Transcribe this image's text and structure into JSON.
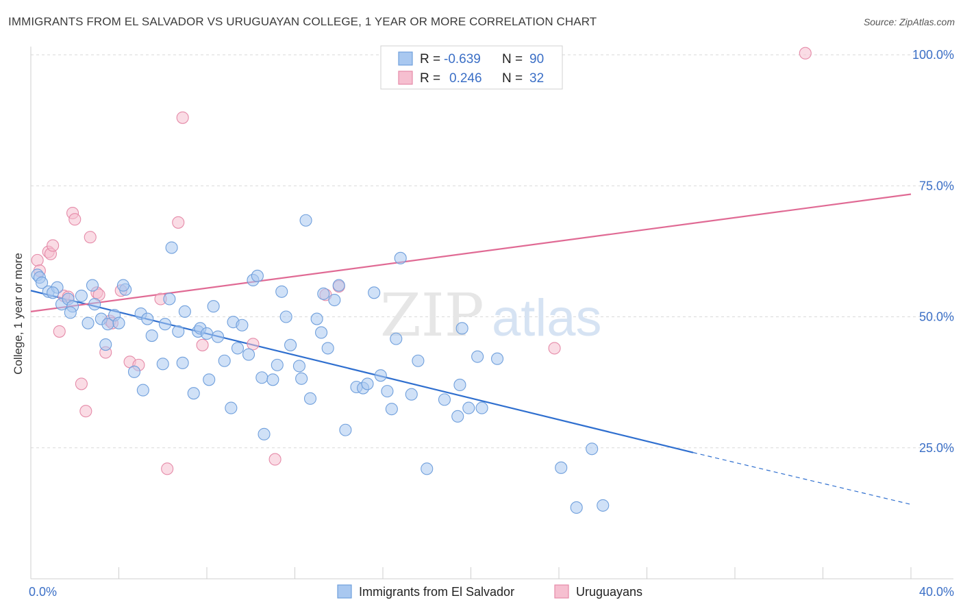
{
  "header": {
    "title": "IMMIGRANTS FROM EL SALVADOR VS URUGUAYAN COLLEGE, 1 YEAR OR MORE CORRELATION CHART",
    "source": "Source: ZipAtlas.com"
  },
  "watermark": {
    "zip": "ZIP",
    "atlas": "atlas"
  },
  "colors": {
    "blue_fill": "#a9c8f0",
    "blue_stroke": "#6f9fdc",
    "blue_line": "#2f6fcf",
    "pink_fill": "#f6bfd0",
    "pink_stroke": "#e58aa8",
    "pink_line": "#e06a94",
    "axis_text": "#3b6fc6",
    "grid": "#d9d9d9"
  },
  "legend": {
    "rows": [
      {
        "r_label": "R =",
        "r_value": "-0.639",
        "n_label": "N =",
        "n_value": "90"
      },
      {
        "r_label": "R =",
        "r_value": "0.246",
        "n_label": "N =",
        "n_value": "32"
      }
    ]
  },
  "chart_data": {
    "type": "scatter",
    "title": "IMMIGRANTS FROM EL SALVADOR VS URUGUAYAN COLLEGE, 1 YEAR OR MORE CORRELATION CHART",
    "xlabel": "",
    "ylabel": "College, 1 year or more",
    "xlim": [
      0,
      40
    ],
    "ylim": [
      0,
      100
    ],
    "x_tick_labels": [
      "0.0%",
      "40.0%"
    ],
    "y_ticks": [
      25,
      50,
      75,
      100
    ],
    "y_tick_labels": [
      "25.0%",
      "50.0%",
      "75.0%",
      "100.0%"
    ],
    "grid": true,
    "legend_position": "top-center",
    "series": [
      {
        "name": "Immigrants from El Salvador",
        "color": "#a9c8f0",
        "trend": {
          "x0": 0,
          "y0": 55.0,
          "x1": 30.1,
          "y1": 24.1,
          "dash_x1": 40,
          "dash_y1": 14.2
        },
        "points": [
          [
            0.3,
            58.0
          ],
          [
            0.4,
            57.5
          ],
          [
            0.5,
            56.5
          ],
          [
            0.8,
            54.8
          ],
          [
            1.2,
            55.6
          ],
          [
            1.0,
            54.6
          ],
          [
            1.4,
            52.4
          ],
          [
            1.7,
            53.4
          ],
          [
            1.9,
            52.0
          ],
          [
            1.8,
            50.8
          ],
          [
            2.3,
            54.0
          ],
          [
            2.6,
            48.8
          ],
          [
            2.8,
            56.0
          ],
          [
            2.9,
            52.4
          ],
          [
            3.2,
            49.6
          ],
          [
            3.4,
            44.7
          ],
          [
            3.5,
            48.6
          ],
          [
            3.8,
            50.3
          ],
          [
            4.0,
            48.8
          ],
          [
            4.3,
            55.2
          ],
          [
            4.2,
            56.0
          ],
          [
            4.7,
            39.5
          ],
          [
            5.0,
            50.6
          ],
          [
            5.1,
            36.0
          ],
          [
            5.3,
            49.6
          ],
          [
            5.5,
            46.4
          ],
          [
            6.0,
            41.0
          ],
          [
            6.1,
            48.6
          ],
          [
            6.3,
            53.4
          ],
          [
            6.4,
            63.2
          ],
          [
            6.7,
            47.2
          ],
          [
            6.9,
            41.2
          ],
          [
            7.0,
            51.0
          ],
          [
            7.4,
            35.4
          ],
          [
            7.6,
            47.2
          ],
          [
            7.7,
            47.8
          ],
          [
            8.0,
            46.8
          ],
          [
            8.1,
            38.0
          ],
          [
            8.3,
            52.0
          ],
          [
            8.5,
            46.2
          ],
          [
            8.8,
            41.6
          ],
          [
            9.1,
            32.6
          ],
          [
            9.2,
            49.0
          ],
          [
            9.4,
            44.0
          ],
          [
            9.6,
            48.4
          ],
          [
            9.9,
            42.8
          ],
          [
            10.1,
            57.0
          ],
          [
            10.3,
            57.8
          ],
          [
            10.5,
            38.4
          ],
          [
            10.6,
            27.6
          ],
          [
            11.0,
            38.0
          ],
          [
            11.2,
            40.8
          ],
          [
            11.4,
            54.8
          ],
          [
            11.6,
            50.0
          ],
          [
            11.8,
            44.6
          ],
          [
            12.2,
            40.6
          ],
          [
            12.3,
            38.2
          ],
          [
            12.5,
            68.4
          ],
          [
            12.7,
            34.4
          ],
          [
            13.0,
            49.6
          ],
          [
            13.2,
            47.0
          ],
          [
            13.3,
            54.4
          ],
          [
            13.5,
            44.0
          ],
          [
            13.8,
            53.2
          ],
          [
            14.0,
            56.0
          ],
          [
            14.3,
            28.4
          ],
          [
            14.8,
            36.6
          ],
          [
            15.1,
            36.4
          ],
          [
            15.3,
            37.2
          ],
          [
            15.6,
            54.6
          ],
          [
            15.9,
            38.8
          ],
          [
            16.2,
            35.8
          ],
          [
            16.4,
            32.4
          ],
          [
            16.6,
            45.8
          ],
          [
            16.8,
            61.2
          ],
          [
            17.3,
            35.2
          ],
          [
            17.6,
            41.6
          ],
          [
            18.0,
            21.0
          ],
          [
            18.8,
            34.2
          ],
          [
            19.4,
            31.0
          ],
          [
            19.5,
            37.0
          ],
          [
            19.6,
            47.8
          ],
          [
            19.9,
            32.6
          ],
          [
            20.3,
            42.4
          ],
          [
            20.5,
            32.6
          ],
          [
            21.2,
            42.0
          ],
          [
            24.1,
            21.2
          ],
          [
            24.8,
            13.6
          ],
          [
            25.5,
            24.8
          ],
          [
            26.0,
            14.0
          ]
        ]
      },
      {
        "name": "Uruguayans",
        "color": "#f6bfd0",
        "trend": {
          "x0": 0,
          "y0": 51.0,
          "x1": 40,
          "y1": 73.4
        },
        "points": [
          [
            0.3,
            60.8
          ],
          [
            0.4,
            58.8
          ],
          [
            0.8,
            62.4
          ],
          [
            0.9,
            62.0
          ],
          [
            1.0,
            63.6
          ],
          [
            1.3,
            47.2
          ],
          [
            1.5,
            54.0
          ],
          [
            1.7,
            53.8
          ],
          [
            1.9,
            69.8
          ],
          [
            2.0,
            68.6
          ],
          [
            2.3,
            37.2
          ],
          [
            2.5,
            32.0
          ],
          [
            2.7,
            65.2
          ],
          [
            3.0,
            54.6
          ],
          [
            3.1,
            54.2
          ],
          [
            3.4,
            43.2
          ],
          [
            3.6,
            49.2
          ],
          [
            3.7,
            48.8
          ],
          [
            4.1,
            55.0
          ],
          [
            4.5,
            41.4
          ],
          [
            4.9,
            40.8
          ],
          [
            5.9,
            53.4
          ],
          [
            6.2,
            21.0
          ],
          [
            6.7,
            68.0
          ],
          [
            6.9,
            88.0
          ],
          [
            7.8,
            44.6
          ],
          [
            10.1,
            44.8
          ],
          [
            11.1,
            22.8
          ],
          [
            13.4,
            54.2
          ],
          [
            14.0,
            55.8
          ],
          [
            23.8,
            44.0
          ],
          [
            35.2,
            100.3
          ]
        ]
      }
    ]
  }
}
